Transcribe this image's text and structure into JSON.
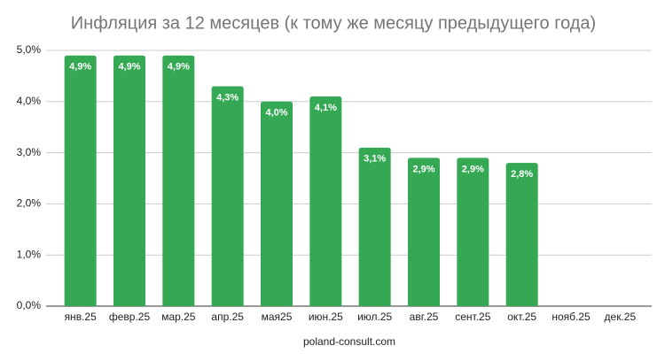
{
  "chart_data": {
    "type": "bar",
    "title": "Инфляция за 12 месяцев (к тому же месяцу предыдущего года)",
    "categories": [
      "янв.25",
      "февр.25",
      "мар.25",
      "апр.25",
      "мая25",
      "июн.25",
      "июл.25",
      "авг.25",
      "сент.25",
      "окт.25",
      "нояб.25",
      "дек.25"
    ],
    "values": [
      4.9,
      4.9,
      4.9,
      4.3,
      4.0,
      4.1,
      3.1,
      2.9,
      2.9,
      2.8,
      null,
      null
    ],
    "value_labels": [
      "4,9%",
      "4,9%",
      "4,9%",
      "4,3%",
      "4,0%",
      "4,1%",
      "3,1%",
      "2,9%",
      "2,9%",
      "2,8%",
      null,
      null
    ],
    "color": "#34a853",
    "ylim": [
      0,
      5
    ],
    "yticks": [
      {
        "value": 0,
        "label": "0,0%"
      },
      {
        "value": 1,
        "label": "1,0%"
      },
      {
        "value": 2,
        "label": "2,0%"
      },
      {
        "value": 3,
        "label": "3,0%"
      },
      {
        "value": 4,
        "label": "4,0%"
      },
      {
        "value": 5,
        "label": "5,0%"
      }
    ],
    "grid": true,
    "source": "poland-consult.com"
  }
}
